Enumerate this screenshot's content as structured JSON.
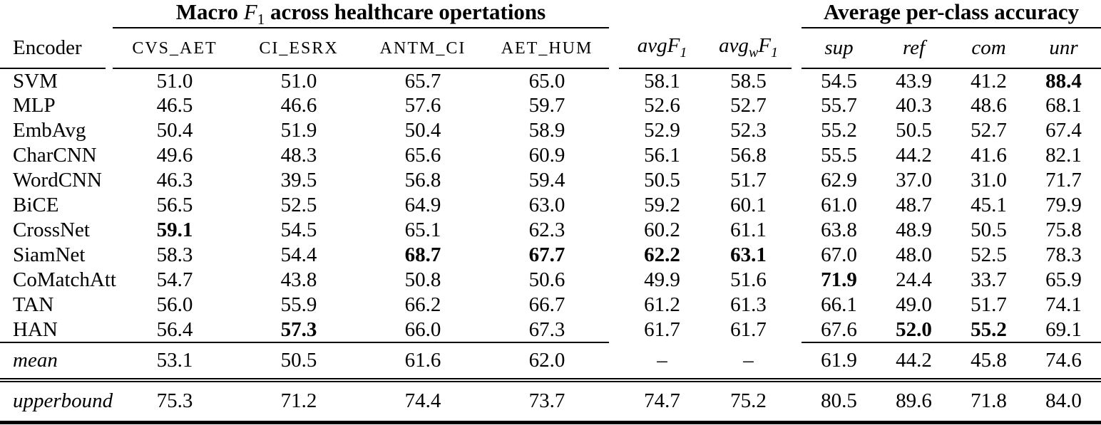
{
  "titles": {
    "macro": {
      "prefix": "Macro ",
      "f": "F",
      "fsub": "1",
      "suffix": " across healthcare opertations"
    },
    "accuracy": "Average per-class accuracy"
  },
  "columns": {
    "encoder": "Encoder",
    "macro": [
      "CVS_AET",
      "CI_ESRX",
      "ANTM_CI",
      "AET_HUM"
    ],
    "avg": [
      {
        "pre": "avg",
        "presub": "",
        "f": "F",
        "fsub": "1"
      },
      {
        "pre": "avg",
        "presub": "w",
        "f": "F",
        "fsub": "1"
      }
    ],
    "classes": [
      "sup",
      "ref",
      "com",
      "unr"
    ]
  },
  "rows": [
    {
      "label": "SVM",
      "values": [
        "51.0",
        "51.0",
        "65.7",
        "65.0",
        "58.1",
        "58.5",
        "54.5",
        "43.9",
        "41.2",
        "88.4"
      ],
      "bold": [
        9
      ]
    },
    {
      "label": "MLP",
      "values": [
        "46.5",
        "46.6",
        "57.6",
        "59.7",
        "52.6",
        "52.7",
        "55.7",
        "40.3",
        "48.6",
        "68.1"
      ],
      "bold": []
    },
    {
      "label": "EmbAvg",
      "values": [
        "50.4",
        "51.9",
        "50.4",
        "58.9",
        "52.9",
        "52.3",
        "55.2",
        "50.5",
        "52.7",
        "67.4"
      ],
      "bold": []
    },
    {
      "label": "CharCNN",
      "values": [
        "49.6",
        "48.3",
        "65.6",
        "60.9",
        "56.1",
        "56.8",
        "55.5",
        "44.2",
        "41.6",
        "82.1"
      ],
      "bold": []
    },
    {
      "label": "WordCNN",
      "values": [
        "46.3",
        "39.5",
        "56.8",
        "59.4",
        "50.5",
        "51.7",
        "62.9",
        "37.0",
        "31.0",
        "71.7"
      ],
      "bold": []
    },
    {
      "label": "BiCE",
      "values": [
        "56.5",
        "52.5",
        "64.9",
        "63.0",
        "59.2",
        "60.1",
        "61.0",
        "48.7",
        "45.1",
        "79.9"
      ],
      "bold": []
    },
    {
      "label": "CrossNet",
      "values": [
        "59.1",
        "54.5",
        "65.1",
        "62.3",
        "60.2",
        "61.1",
        "63.8",
        "48.9",
        "50.5",
        "75.8"
      ],
      "bold": [
        0
      ]
    },
    {
      "label": "SiamNet",
      "values": [
        "58.3",
        "54.4",
        "68.7",
        "67.7",
        "62.2",
        "63.1",
        "67.0",
        "48.0",
        "52.5",
        "78.3"
      ],
      "bold": [
        2,
        3,
        4,
        5
      ]
    },
    {
      "label": "CoMatchAtt",
      "values": [
        "54.7",
        "43.8",
        "50.8",
        "50.6",
        "49.9",
        "51.6",
        "71.9",
        "24.4",
        "33.7",
        "65.9"
      ],
      "bold": [
        6
      ]
    },
    {
      "label": "TAN",
      "values": [
        "56.0",
        "55.9",
        "66.2",
        "66.7",
        "61.2",
        "61.3",
        "66.1",
        "49.0",
        "51.7",
        "74.1"
      ],
      "bold": []
    },
    {
      "label": "HAN",
      "values": [
        "56.4",
        "57.3",
        "66.0",
        "67.3",
        "61.7",
        "61.7",
        "67.6",
        "52.0",
        "55.2",
        "69.1"
      ],
      "bold": [
        1,
        7,
        8
      ]
    }
  ],
  "mean_row": {
    "label": "mean",
    "italic": true,
    "values": [
      "53.1",
      "50.5",
      "61.6",
      "62.0",
      "–",
      "–",
      "61.9",
      "44.2",
      "45.8",
      "74.6"
    ],
    "bold": []
  },
  "upperbound_row": {
    "label": "upperbound",
    "italic": true,
    "values": [
      "75.3",
      "71.2",
      "74.4",
      "73.7",
      "74.7",
      "75.2",
      "80.5",
      "89.6",
      "71.8",
      "84.0"
    ],
    "bold": []
  },
  "colors": {
    "text": "#000000",
    "background": "#ffffff"
  }
}
